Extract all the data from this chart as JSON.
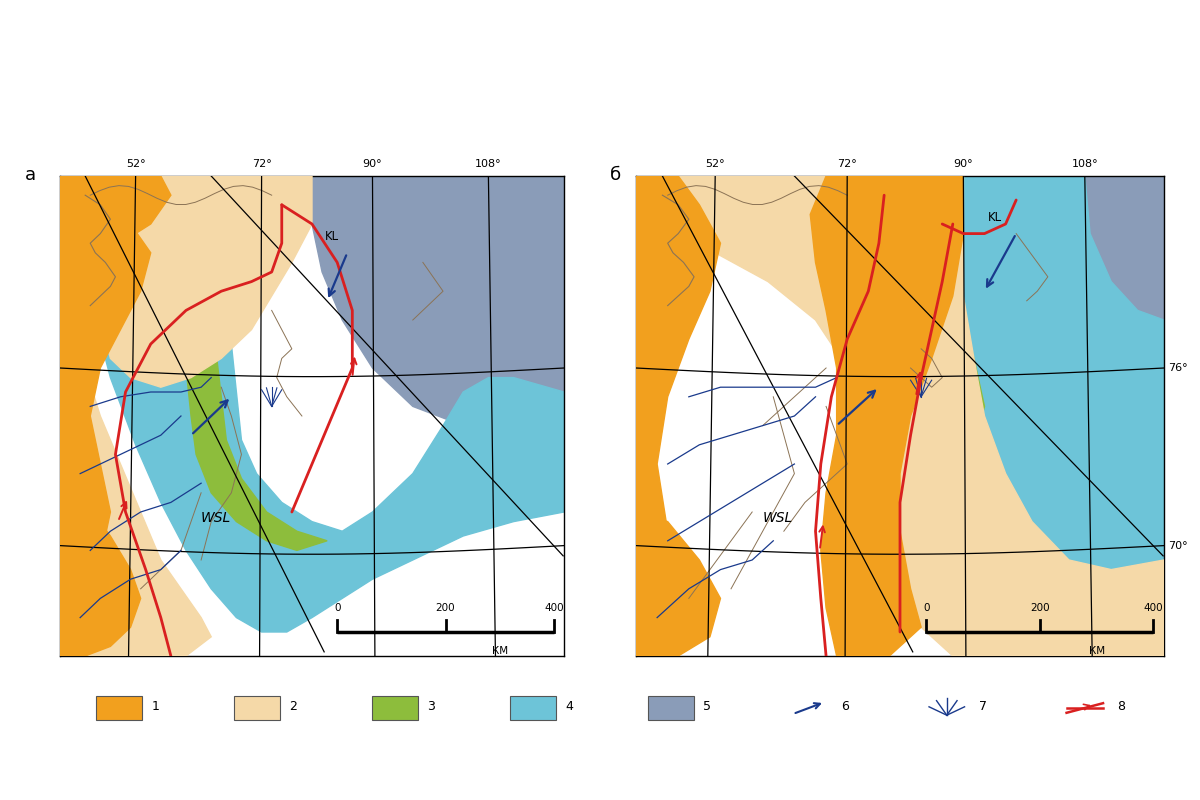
{
  "fig_width": 12.0,
  "fig_height": 8.0,
  "dpi": 100,
  "bg_color": "#ffffff",
  "panel_a_label": "а",
  "panel_b_label": "б",
  "color_orange": "#F2A01E",
  "color_peach": "#F5D9A8",
  "color_green": "#8DBD3C",
  "color_cyan": "#6DC4D8",
  "color_gray_blue": "#8A9CB8",
  "color_red_line": "#D92020",
  "color_blue_line": "#1A3A8C",
  "color_coast": "#8B7355",
  "legend_labels": [
    "1",
    "2",
    "3",
    "4",
    "5",
    "6",
    "7",
    "8"
  ]
}
